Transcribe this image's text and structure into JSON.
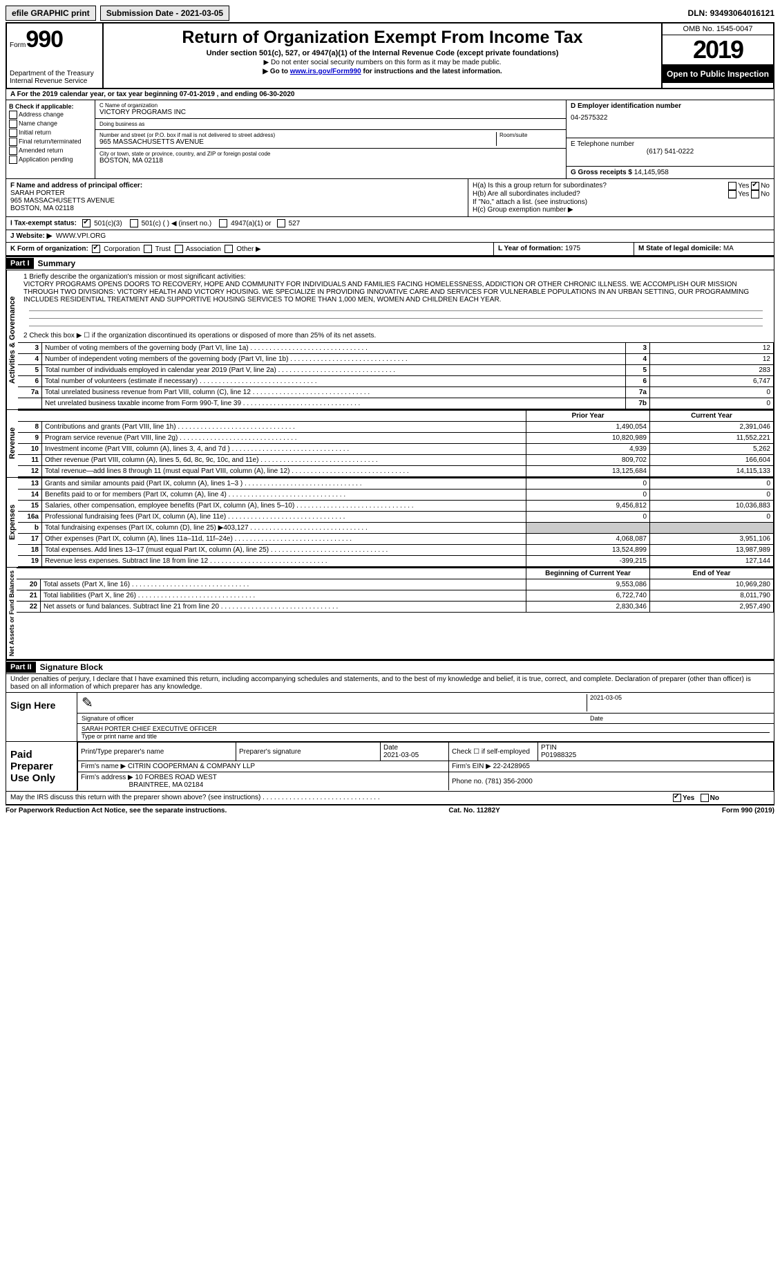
{
  "topbar": {
    "efile": "efile GRAPHIC print",
    "submission": "Submission Date - 2021-03-05",
    "dln_label": "DLN:",
    "dln": "93493064016121"
  },
  "header": {
    "form_label": "Form",
    "form_no": "990",
    "dept": "Department of the Treasury",
    "irs": "Internal Revenue Service",
    "title": "Return of Organization Exempt From Income Tax",
    "sub": "Under section 501(c), 527, or 4947(a)(1) of the Internal Revenue Code (except private foundations)",
    "note1": "▶ Do not enter social security numbers on this form as it may be made public.",
    "note2_pre": "▶ Go to ",
    "note2_link": "www.irs.gov/Form990",
    "note2_post": " for instructions and the latest information.",
    "omb": "OMB No. 1545-0047",
    "year": "2019",
    "open": "Open to Public Inspection"
  },
  "row_a": "A For the 2019 calendar year, or tax year beginning 07-01-2019    , and ending 06-30-2020",
  "box_b": {
    "title": "B Check if applicable:",
    "items": [
      "Address change",
      "Name change",
      "Initial return",
      "Final return/terminated",
      "Amended return",
      "Application pending"
    ]
  },
  "box_c": {
    "name_label": "C Name of organization",
    "name": "VICTORY PROGRAMS INC",
    "dba_label": "Doing business as",
    "street_label": "Number and street (or P.O. box if mail is not delivered to street address)",
    "room_label": "Room/suite",
    "street": "965 MASSACHUSETTS AVENUE",
    "city_label": "City or town, state or province, country, and ZIP or foreign postal code",
    "city": "BOSTON, MA  02118"
  },
  "box_d": {
    "label": "D Employer identification number",
    "val": "04-2575322"
  },
  "box_e": {
    "label": "E Telephone number",
    "val": "(617) 541-0222"
  },
  "box_g": {
    "label": "G Gross receipts $",
    "val": "14,145,958"
  },
  "box_f": {
    "label": "F Name and address of principal officer:",
    "name": "SARAH PORTER",
    "addr1": "965 MASSACHUSETTS AVENUE",
    "addr2": "BOSTON, MA  02118"
  },
  "box_h": {
    "ha": "H(a)  Is this a group return for subordinates?",
    "hb": "H(b)  Are all subordinates included?",
    "hb_note": "If \"No,\" attach a list. (see instructions)",
    "hc": "H(c)  Group exemption number ▶",
    "yes": "Yes",
    "no": "No"
  },
  "box_i": {
    "label": "I  Tax-exempt status:",
    "c3": "501(c)(3)",
    "c": "501(c) (   ) ◀ (insert no.)",
    "a1": "4947(a)(1) or",
    "s527": "527"
  },
  "box_j": {
    "label": "J  Website: ▶",
    "val": "WWW.VPI.ORG"
  },
  "box_k": {
    "label": "K Form of organization:",
    "corp": "Corporation",
    "trust": "Trust",
    "assoc": "Association",
    "other": "Other ▶"
  },
  "box_l": {
    "label": "L Year of formation:",
    "val": "1975"
  },
  "box_m": {
    "label": "M State of legal domicile:",
    "val": "MA"
  },
  "part1": {
    "hdr": "Part I",
    "title": "Summary"
  },
  "mission": {
    "q1": "1  Briefly describe the organization's mission or most significant activities:",
    "text": "VICTORY PROGRAMS OPENS DOORS TO RECOVERY, HOPE AND COMMUNITY FOR INDIVIDUALS AND FAMILIES FACING HOMELESSNESS, ADDICTION OR OTHER CHRONIC ILLNESS. WE ACCOMPLISH OUR MISSION THROUGH TWO DIVISIONS: VICTORY HEALTH AND VICTORY HOUSING. WE SPECIALIZE IN PROVIDING INNOVATIVE CARE AND SERVICES FOR VULNERABLE POPULATIONS IN AN URBAN SETTING, OUR PROGRAMMING INCLUDES RESIDENTIAL TREATMENT AND SUPPORTIVE HOUSING SERVICES TO MORE THAN 1,000 MEN, WOMEN AND CHILDREN EACH YEAR."
  },
  "gov_lines": {
    "l2": "2  Check this box ▶ ☐ if the organization discontinued its operations or disposed of more than 25% of its net assets.",
    "rows": [
      {
        "n": "3",
        "t": "Number of voting members of the governing body (Part VI, line 1a)",
        "box": "3",
        "v": "12"
      },
      {
        "n": "4",
        "t": "Number of independent voting members of the governing body (Part VI, line 1b)",
        "box": "4",
        "v": "12"
      },
      {
        "n": "5",
        "t": "Total number of individuals employed in calendar year 2019 (Part V, line 2a)",
        "box": "5",
        "v": "283"
      },
      {
        "n": "6",
        "t": "Total number of volunteers (estimate if necessary)",
        "box": "6",
        "v": "6,747"
      },
      {
        "n": "7a",
        "t": "Total unrelated business revenue from Part VIII, column (C), line 12",
        "box": "7a",
        "v": "0"
      },
      {
        "n": "",
        "t": "Net unrelated business taxable income from Form 990-T, line 39",
        "box": "7b",
        "v": "0"
      }
    ]
  },
  "headers": {
    "prior": "Prior Year",
    "current": "Current Year",
    "boy": "Beginning of Current Year",
    "eoy": "End of Year"
  },
  "sections": {
    "activities": "Activities & Governance",
    "revenue": "Revenue",
    "expenses": "Expenses",
    "netassets": "Net Assets or Fund Balances"
  },
  "rev": [
    {
      "n": "8",
      "t": "Contributions and grants (Part VIII, line 1h)",
      "p": "1,490,054",
      "c": "2,391,046"
    },
    {
      "n": "9",
      "t": "Program service revenue (Part VIII, line 2g)",
      "p": "10,820,989",
      "c": "11,552,221"
    },
    {
      "n": "10",
      "t": "Investment income (Part VIII, column (A), lines 3, 4, and 7d )",
      "p": "4,939",
      "c": "5,262"
    },
    {
      "n": "11",
      "t": "Other revenue (Part VIII, column (A), lines 5, 6d, 8c, 9c, 10c, and 11e)",
      "p": "809,702",
      "c": "166,604"
    },
    {
      "n": "12",
      "t": "Total revenue—add lines 8 through 11 (must equal Part VIII, column (A), line 12)",
      "p": "13,125,684",
      "c": "14,115,133"
    }
  ],
  "exp": [
    {
      "n": "13",
      "t": "Grants and similar amounts paid (Part IX, column (A), lines 1–3 )",
      "p": "0",
      "c": "0"
    },
    {
      "n": "14",
      "t": "Benefits paid to or for members (Part IX, column (A), line 4)",
      "p": "0",
      "c": "0"
    },
    {
      "n": "15",
      "t": "Salaries, other compensation, employee benefits (Part IX, column (A), lines 5–10)",
      "p": "9,456,812",
      "c": "10,036,883"
    },
    {
      "n": "16a",
      "t": "Professional fundraising fees (Part IX, column (A), line 11e)",
      "p": "0",
      "c": "0"
    },
    {
      "n": "b",
      "t": "Total fundraising expenses (Part IX, column (D), line 25) ▶403,127",
      "p": "shade",
      "c": "shade"
    },
    {
      "n": "17",
      "t": "Other expenses (Part IX, column (A), lines 11a–11d, 11f–24e)",
      "p": "4,068,087",
      "c": "3,951,106"
    },
    {
      "n": "18",
      "t": "Total expenses. Add lines 13–17 (must equal Part IX, column (A), line 25)",
      "p": "13,524,899",
      "c": "13,987,989"
    },
    {
      "n": "19",
      "t": "Revenue less expenses. Subtract line 18 from line 12",
      "p": "-399,215",
      "c": "127,144"
    }
  ],
  "net": [
    {
      "n": "20",
      "t": "Total assets (Part X, line 16)",
      "p": "9,553,086",
      "c": "10,969,280"
    },
    {
      "n": "21",
      "t": "Total liabilities (Part X, line 26)",
      "p": "6,722,740",
      "c": "8,011,790"
    },
    {
      "n": "22",
      "t": "Net assets or fund balances. Subtract line 21 from line 20",
      "p": "2,830,346",
      "c": "2,957,490"
    }
  ],
  "part2": {
    "hdr": "Part II",
    "title": "Signature Block"
  },
  "sig_text": "Under penalties of perjury, I declare that I have examined this return, including accompanying schedules and statements, and to the best of my knowledge and belief, it is true, correct, and complete. Declaration of preparer (other than officer) is based on all information of which preparer has any knowledge.",
  "sign_here": "Sign Here",
  "sig_officer_label": "Signature of officer",
  "sig_date_label": "Date",
  "sig_date": "2021-03-05",
  "sig_name": "SARAH PORTER  CHIEF EXECUTIVE OFFICER",
  "sig_name_label": "Type or print name and title",
  "paid": {
    "title": "Paid Preparer Use Only",
    "h1": "Print/Type preparer's name",
    "h2": "Preparer's signature",
    "h3": "Date",
    "h4": "Check ☐ if self-employed",
    "h5": "PTIN",
    "date": "2021-03-05",
    "ptin": "P01988325",
    "firm_label": "Firm's name    ▶",
    "firm": "CITRIN COOPERMAN & COMPANY LLP",
    "ein_label": "Firm's EIN ▶",
    "ein": "22-2428965",
    "addr_label": "Firm's address ▶",
    "addr1": "10 FORBES ROAD WEST",
    "addr2": "BRAINTREE, MA  02184",
    "phone_label": "Phone no.",
    "phone": "(781) 356-2000"
  },
  "discuss": "May the IRS discuss this return with the preparer shown above? (see instructions)",
  "footer": {
    "l": "For Paperwork Reduction Act Notice, see the separate instructions.",
    "m": "Cat. No. 11282Y",
    "r": "Form 990 (2019)"
  }
}
